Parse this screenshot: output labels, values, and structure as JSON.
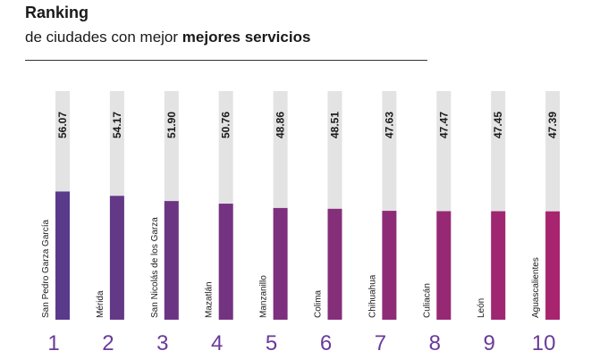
{
  "header": {
    "title": "Ranking",
    "subtitle_plain": "de ciudades con mejor ",
    "subtitle_bold": "mejores servicios"
  },
  "colors": {
    "track": "#e3e3e3",
    "bar_start": "#5a3a8a",
    "bar_end": "#a8246e",
    "rank_text": "#6a3a9a"
  },
  "chart_data": {
    "type": "bar",
    "title": "Ranking de ciudades con mejor mejores servicios",
    "categories": [
      "San Pedro Garza García",
      "Mérida",
      "San Nicolás de los Garza",
      "Mazatlán",
      "Manzanillo",
      "Colima",
      "Chihuahua",
      "Culiacán",
      "León",
      "Aguascalientes"
    ],
    "ranks": [
      "1",
      "2",
      "3",
      "4",
      "5",
      "6",
      "7",
      "8",
      "9",
      "10"
    ],
    "values": [
      56.07,
      54.17,
      51.9,
      50.76,
      48.86,
      48.51,
      47.63,
      47.47,
      47.45,
      47.39
    ],
    "value_labels": [
      "56.07",
      "54.17",
      "51.90",
      "50.76",
      "48.86",
      "48.51",
      "47.63",
      "47.47",
      "47.45",
      "47.39"
    ],
    "ylim": [
      0,
      100
    ],
    "grid": false,
    "legend": "none"
  }
}
